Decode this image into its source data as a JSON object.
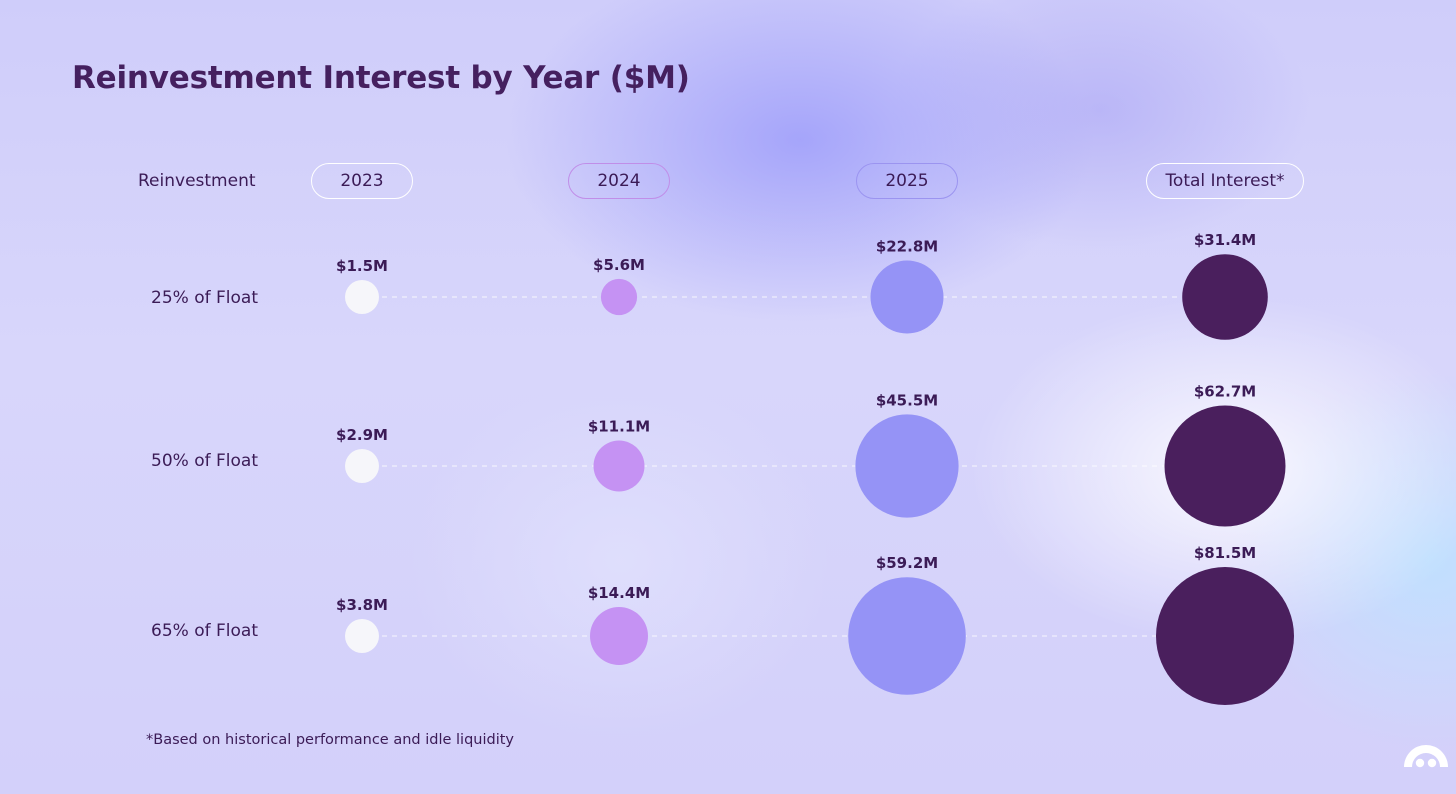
{
  "chart_data": {
    "type": "bubble",
    "title": "Reinvestment Interest by Year ($M)",
    "row_header": "Reinvestment",
    "categories": [
      "2023",
      "2024",
      "2025",
      "Total Interest*"
    ],
    "rows": [
      {
        "name": "25% of Float",
        "values": [
          1.5,
          5.6,
          22.8,
          31.4
        ],
        "labels": [
          "$1.5M",
          "$5.6M",
          "$22.8M",
          "$31.4M"
        ]
      },
      {
        "name": "50% of Float",
        "values": [
          2.9,
          11.1,
          45.5,
          62.7
        ],
        "labels": [
          "$2.9M",
          "$11.1M",
          "$45.5M",
          "$62.7M"
        ]
      },
      {
        "name": "65% of Float",
        "values": [
          3.8,
          14.4,
          59.2,
          81.5
        ],
        "labels": [
          "$3.8M",
          "$14.4M",
          "$59.2M",
          "$81.5M"
        ]
      }
    ],
    "colors": [
      "#f6f6fa",
      "#c592f3",
      "#9593f6",
      "#4a1f5d"
    ],
    "pill_border_colors": [
      "#ffffff",
      "#c08ee8",
      "#9b94f0",
      "#ffffff"
    ],
    "connector": "dashed-white",
    "footnote": "*Based on historical performance and idle liquidity"
  },
  "logo": {
    "icon": "rainbow-arch-logo-icon",
    "color": "#ffffff"
  }
}
